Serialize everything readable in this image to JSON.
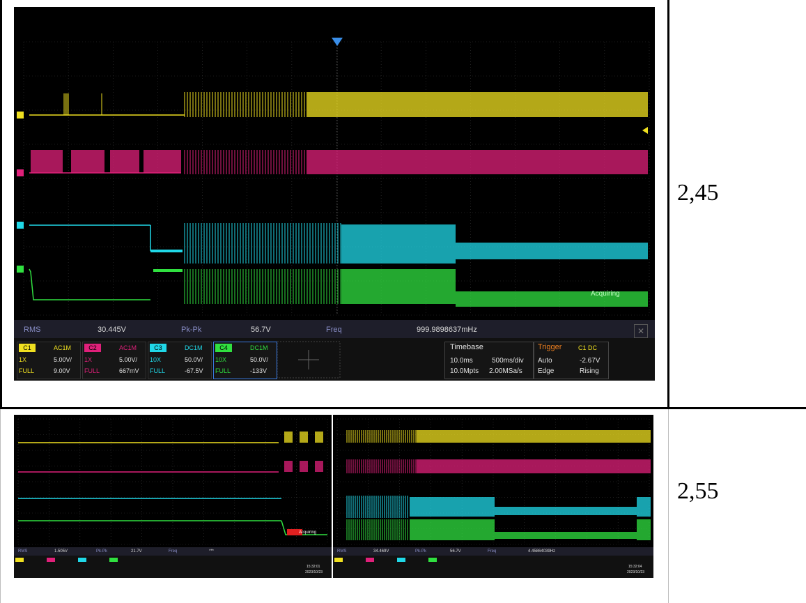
{
  "rows": [
    {
      "value": "2,45",
      "scope": {
        "trigger_marker": "triangle-down-icon",
        "measurements": [
          {
            "label": "RMS",
            "value": "30.445V"
          },
          {
            "label": "Pk-Pk",
            "value": "56.7V"
          },
          {
            "label": "Freq",
            "value": "999.9898637mHz"
          }
        ],
        "acquisition_status": "Acquiring",
        "channels": [
          {
            "id": "C1",
            "coupling": "AC1M",
            "probe": "1X",
            "scale": "5.00V/",
            "range": "FULL",
            "offset": "9.00V",
            "color": "#f0e020"
          },
          {
            "id": "C2",
            "coupling": "AC1M",
            "probe": "1X",
            "scale": "5.00V/",
            "range": "FULL",
            "offset": "667mV",
            "color": "#e0207a"
          },
          {
            "id": "C3",
            "coupling": "DC1M",
            "probe": "10X",
            "scale": "50.0V/",
            "range": "FULL",
            "offset": "-67.5V",
            "color": "#20d8e8"
          },
          {
            "id": "C4",
            "coupling": "DC1M",
            "probe": "10X",
            "scale": "50.0V/",
            "range": "FULL",
            "offset": "-133V",
            "color": "#30e040"
          }
        ],
        "timebase": {
          "label": "Timebase",
          "delay": "10.0ms",
          "per_div": "500ms/div",
          "points": "10.0Mpts",
          "rate": "2.00MSa/s"
        },
        "trigger": {
          "label": "Trigger",
          "source": "C1 DC",
          "mode": "Auto",
          "level": "-2.67V",
          "type": "Edge",
          "slope": "Rising"
        }
      }
    },
    {
      "value": "2,55",
      "scopes": [
        {
          "measurements": [
            {
              "label": "RMS",
              "value": "1.505V"
            },
            {
              "label": "Pk-Pk",
              "value": "21.7V"
            },
            {
              "label": "Freq",
              "value": "***"
            }
          ],
          "acquisition_status": "Acquiring",
          "time": "15:32:01",
          "date": "2023/10/23"
        },
        {
          "measurements": [
            {
              "label": "RMS",
              "value": "34.469V"
            },
            {
              "label": "Pk-Pk",
              "value": "56.7V"
            },
            {
              "label": "Freq",
              "value": "4.45864039Hz"
            }
          ],
          "time": "15:32:04",
          "date": "2023/10/23"
        }
      ]
    }
  ],
  "colors": {
    "ch1": "#f0e020",
    "ch2": "#e0207a",
    "ch3": "#20d8e8",
    "ch4": "#30e040",
    "grid": "#3a3a3a",
    "panel": "#1c1c1c"
  }
}
